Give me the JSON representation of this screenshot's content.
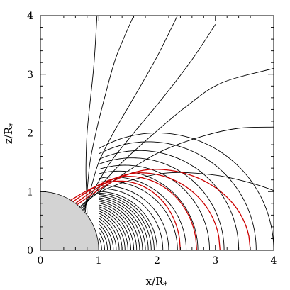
{
  "chart_data": {
    "type": "line",
    "title": "",
    "xlabel": "x/R",
    "xlabel_subscript": "*",
    "ylabel": "z/R",
    "ylabel_subscript": "*",
    "xlim": [
      0,
      4
    ],
    "ylim": [
      0,
      4
    ],
    "xticks": [
      "0",
      "1",
      "2",
      "3",
      "4"
    ],
    "yticks": [
      "0",
      "1",
      "2",
      "3",
      "4"
    ],
    "xtick_values": [
      0,
      1,
      2,
      3,
      4
    ],
    "ytick_values": [
      0,
      1,
      2,
      3,
      4
    ],
    "grid": false,
    "legend": "none",
    "star": {
      "shape": "quarter-disk",
      "radius": 1,
      "fill": "#d3d3d3"
    },
    "closed_field_lines": {
      "color": "#000000",
      "description": "dipole-like loops x = L sin^2(theta), z = L sin(theta) cos(theta), footpoints on the stellar surface",
      "L_values": [
        1.05,
        1.1,
        1.15,
        1.2,
        1.25,
        1.3,
        1.35,
        1.4,
        1.45,
        1.5,
        1.55,
        1.6,
        1.65,
        1.7,
        1.75,
        1.8,
        1.85,
        1.9,
        1.95,
        2.0,
        2.1,
        2.2,
        2.35,
        2.5,
        2.7,
        2.9,
        3.15,
        3.4,
        3.7,
        4.0
      ]
    },
    "open_field_lines": {
      "color": "#000000",
      "description": "open field lines leaving the star and bending outward",
      "lines": [
        {
          "x": [
            0.8,
            0.79,
            0.78,
            0.8,
            0.86,
            0.92,
            0.97
          ],
          "y": [
            0.62,
            1.0,
            1.4,
            2.0,
            2.6,
            3.2,
            4.0
          ]
        },
        {
          "x": [
            0.77,
            0.8,
            0.85,
            0.95,
            1.1,
            1.3,
            1.6
          ],
          "y": [
            0.65,
            1.0,
            1.5,
            2.0,
            2.6,
            3.3,
            4.0
          ]
        },
        {
          "x": [
            0.75,
            0.85,
            1.0,
            1.25,
            1.6,
            2.0,
            2.35
          ],
          "y": [
            0.67,
            1.0,
            1.5,
            2.0,
            2.6,
            3.3,
            4.0
          ]
        },
        {
          "x": [
            0.73,
            0.9,
            1.2,
            1.6,
            2.1,
            2.6,
            3.0
          ],
          "y": [
            0.69,
            1.0,
            1.5,
            2.0,
            2.6,
            3.25,
            3.85
          ]
        },
        {
          "x": [
            0.71,
            0.95,
            1.35,
            1.9,
            2.5,
            3.1,
            4.0
          ],
          "y": [
            0.71,
            1.0,
            1.45,
            1.95,
            2.45,
            2.85,
            3.1
          ]
        },
        {
          "x": [
            0.69,
            1.0,
            1.5,
            2.1,
            2.8,
            3.4,
            4.0
          ],
          "y": [
            0.73,
            1.0,
            1.35,
            1.7,
            1.95,
            2.08,
            2.1
          ]
        },
        {
          "x": [
            0.67,
            1.0,
            1.5,
            2.2,
            3.0,
            3.6,
            4.0
          ],
          "y": [
            0.74,
            0.98,
            1.18,
            1.32,
            1.28,
            1.15,
            1.02
          ]
        }
      ]
    },
    "red_loops": {
      "color": "#cc0000",
      "description": "highlighted closed loops from the upper stellar surface out to the equator",
      "loops": [
        {
          "x_start": 0.52,
          "x_end": 2.4,
          "peak_z": 1.18
        },
        {
          "x_start": 0.56,
          "x_end": 2.68,
          "peak_z": 1.26
        },
        {
          "x_start": 0.6,
          "x_end": 3.08,
          "peak_z": 1.32
        },
        {
          "x_start": 0.63,
          "x_end": 3.6,
          "peak_z": 1.38
        }
      ]
    }
  }
}
